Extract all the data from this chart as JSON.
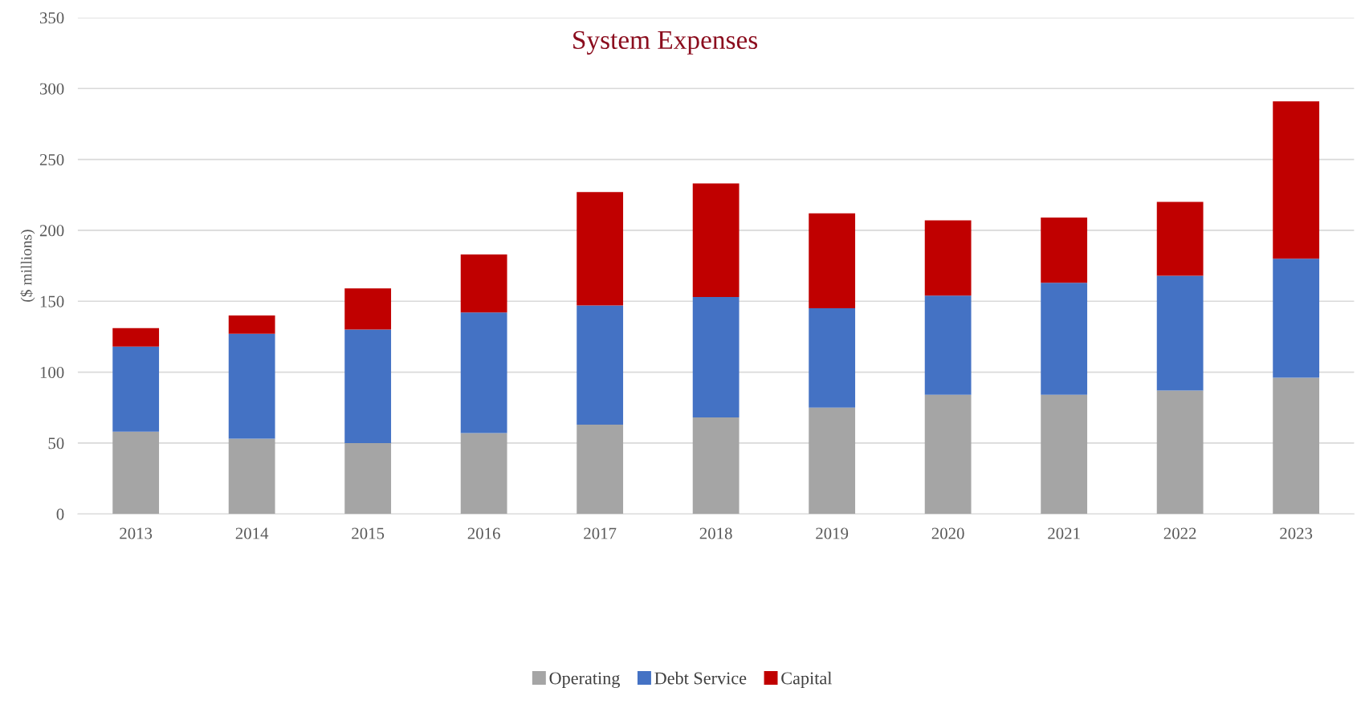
{
  "chart_data": {
    "type": "bar",
    "title": "System Expenses",
    "ylabel": "($ millions)",
    "stacked": true,
    "categories": [
      "2013",
      "2014",
      "2015",
      "2016",
      "2017",
      "2018",
      "2019",
      "2020",
      "2021",
      "2022",
      "2023"
    ],
    "series": [
      {
        "name": "Operating",
        "color": "#a5a5a5",
        "values": [
          58,
          53,
          50,
          57,
          63,
          68,
          75,
          84,
          84,
          87,
          96
        ]
      },
      {
        "name": "Debt Service",
        "color": "#4472c4",
        "values": [
          60,
          74,
          80,
          85,
          84,
          85,
          70,
          70,
          79,
          81,
          84
        ]
      },
      {
        "name": "Capital",
        "color": "#c00000",
        "values": [
          13,
          13,
          29,
          41,
          80,
          80,
          67,
          53,
          46,
          52,
          111
        ]
      }
    ],
    "ylim": [
      0,
      350
    ],
    "yticks": [
      0,
      50,
      100,
      150,
      200,
      250,
      300,
      350
    ],
    "grid": "y",
    "legend": "bottom"
  }
}
